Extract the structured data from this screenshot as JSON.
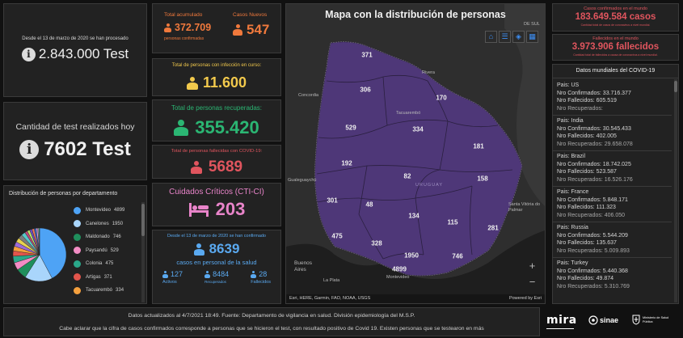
{
  "tests_total": {
    "caption": "Desde el 13 de marzo de 2020 se han procesado",
    "value": "2.843.000 Test"
  },
  "tests_today": {
    "caption": "Cantidad de test realizados hoy",
    "value": "7602 Test"
  },
  "total_accumulated": {
    "label": "Total acumulado",
    "value": "372.709",
    "sub": "personas confirmadas"
  },
  "new_cases": {
    "label": "Casos Nuevos",
    "value": "547"
  },
  "active_infection": {
    "label": "Total de personas con infección en curso:",
    "value": "11.600"
  },
  "recovered": {
    "label": "Total de personas recuperadas:",
    "value": "355.420"
  },
  "deceased": {
    "label": "Total de personas fallecidas con COVID-19:",
    "value": "5689"
  },
  "critical_care": {
    "label": "Cuidados Críticos (CTI-CI)",
    "value": "203"
  },
  "health_staff": {
    "caption": "Desde el 13 de marzo de 2020 se han confirmado",
    "value": "8639",
    "sub": "casos en personal de la salud",
    "active_value": "127",
    "active_label": "Activos",
    "recovered_value": "8484",
    "recovered_label": "Recuperados",
    "deceased_value": "28",
    "deceased_label": "Fallecidos"
  },
  "departments": {
    "title": "Distribución de personas por departamento",
    "items": [
      {
        "name": "Montevideo",
        "value": "4899",
        "color": "#4ea3f5"
      },
      {
        "name": "Canelones",
        "value": "1950",
        "color": "#a9d5fb"
      },
      {
        "name": "Maldonado",
        "value": "746",
        "color": "#1f8f5c"
      },
      {
        "name": "Paysandú",
        "value": "529",
        "color": "#f28cc4"
      },
      {
        "name": "Colonia",
        "value": "475",
        "color": "#2aa88a"
      },
      {
        "name": "Artigas",
        "value": "371",
        "color": "#e2554c"
      },
      {
        "name": "Tacuarembó",
        "value": "334",
        "color": "#f5a03e"
      }
    ],
    "pie_values": [
      4899,
      1950,
      746,
      529,
      475,
      371,
      334,
      328,
      306,
      301,
      281,
      192,
      181,
      170,
      158,
      134,
      115,
      82,
      48
    ],
    "pie_colors": [
      "#4ea3f5",
      "#a9d5fb",
      "#1f8f5c",
      "#f28cc4",
      "#2aa88a",
      "#e2554c",
      "#f5a03e",
      "#9b6ad8",
      "#e8d14f",
      "#7c7c7c",
      "#58c7c7",
      "#c2457a",
      "#b9e36a",
      "#6a4fc4",
      "#f07a5a",
      "#3b6cc4",
      "#d9a0f0",
      "#a0a0a0",
      "#5fd08a"
    ]
  },
  "map": {
    "title": "Mapa con la distribución de personas",
    "attribution": "Esri, HERE, Garmin, FAO, NOAA, USGS",
    "powered": "Powered by Esri",
    "country_label": "URUGUAY",
    "geo_labels": {
      "sud": "DE SUL",
      "concordia": "Concordia",
      "gualeguaychu": "Gualeguaychú",
      "buenos_aires": "Buenos Aires",
      "la_plata": "La Plata",
      "tacuarembo": "Tacuarembó",
      "santa_vitoria": "Santa Vitória do Palmar",
      "montevideo": "Montevideo",
      "rivera": "Rivera"
    },
    "counts": [
      "371",
      "306",
      "170",
      "529",
      "334",
      "181",
      "192",
      "82",
      "158",
      "301",
      "48",
      "134",
      "115",
      "281",
      "475",
      "328",
      "1950",
      "746",
      "4899"
    ],
    "toolbar": [
      "home",
      "list",
      "layers",
      "qr"
    ]
  },
  "world_total": {
    "label": "Casos confirmados en el mundo",
    "value": "183.649.584 casos",
    "sub": "Cantidad total de casos de coronavirus a nivel mundial."
  },
  "world_deaths": {
    "label": "Fallecidos en el mundo",
    "value": "3.973.906 fallecidos",
    "sub": "Cantidad total de fallecidos a causa de coronavirus a nivel mundial."
  },
  "world_data": {
    "title": "Datos mundiales del COVID-19",
    "countries": [
      {
        "country": "Pais: US",
        "confirmed": "Nro Confirmados: 33.716.377",
        "deaths": "Nro Fallecidos: 605.519",
        "recovered": "Nro Recuperados:"
      },
      {
        "country": "Pais: India",
        "confirmed": "Nro Confirmados: 30.545.433",
        "deaths": "Nro Fallecidos: 402.005",
        "recovered": "Nro Recuperados: 29.658.078"
      },
      {
        "country": "Pais: Brazil",
        "confirmed": "Nro Confirmados: 18.742.025",
        "deaths": "Nro Fallecidos: 523.587",
        "recovered": "Nro Recuperados: 16.526.176"
      },
      {
        "country": "Pais: France",
        "confirmed": "Nro Confirmados: 5.848.171",
        "deaths": "Nro Fallecidos: 111.323",
        "recovered": "Nro Recuperados: 406.050"
      },
      {
        "country": "Pais: Russia",
        "confirmed": "Nro Confirmados: 5.544.209",
        "deaths": "Nro Fallecidos: 135.637",
        "recovered": "Nro Recuperados: 5.009.893"
      },
      {
        "country": "Pais: Turkey",
        "confirmed": "Nro Confirmados: 5.440.368",
        "deaths": "Nro Fallecidos: 49.874",
        "recovered": "Nro Recuperados: 5.310.769"
      }
    ]
  },
  "footer": {
    "line1": "Datos actualizados al 4/7/2021 18:49. Fuente: Departamento de vigilancia en salud. División epidemiología del M.S.P.",
    "line2": "Cabe aclarar que la cifra de casos confirmados corresponde a personas que se hicieron el test, con resultado positivo de Covid 19. Existen personas que se testearon en más",
    "logo_mira": "mira",
    "logo_sinae": "sinae",
    "logo_msp": "Ministerio de Salud Pública"
  },
  "colors": {
    "background": "#111111",
    "card": "#222222",
    "map_fill": "#4e3778",
    "orange": "#f0793c",
    "yellow": "#f2c94c",
    "green": "#2bb673",
    "red": "#e0555e",
    "pink": "#e884c9",
    "blue": "#5aa9f0"
  }
}
